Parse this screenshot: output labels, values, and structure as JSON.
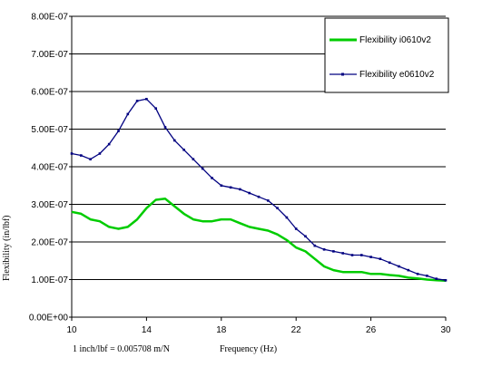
{
  "chart_data": {
    "type": "line",
    "title": "",
    "xlabel": "Frequency (Hz)",
    "ylabel": "Flexibility (in/lbf)",
    "note": "1 inch/lbf = 0.005708 m/N",
    "xlim": [
      10,
      30
    ],
    "ylim": [
      0,
      8e-07
    ],
    "x_ticks": [
      10,
      14,
      18,
      22,
      26,
      30
    ],
    "x_tick_labels": [
      "10",
      "14",
      "18",
      "22",
      "26",
      "30"
    ],
    "y_ticks": [
      0,
      1e-07,
      2e-07,
      3e-07,
      4e-07,
      5e-07,
      6e-07,
      7e-07,
      8e-07
    ],
    "y_tick_labels": [
      "0.00E+00",
      "1.00E-07",
      "2.00E-07",
      "3.00E-07",
      "4.00E-07",
      "5.00E-07",
      "6.00E-07",
      "7.00E-07",
      "8.00E-07"
    ],
    "grid": "horizontal",
    "legend_position": "top-right",
    "series": [
      {
        "name": "Flexibility i0610v2",
        "color": "#00cc00",
        "style": "line",
        "x": [
          10,
          10.5,
          11,
          11.5,
          12,
          12.5,
          13,
          13.5,
          14,
          14.5,
          15,
          15.5,
          16,
          16.5,
          17,
          17.5,
          18,
          18.5,
          19,
          19.5,
          20,
          20.5,
          21,
          21.5,
          22,
          22.5,
          23,
          23.5,
          24,
          24.5,
          25,
          25.5,
          26,
          26.5,
          27,
          27.5,
          28,
          28.5,
          29,
          29.5,
          30
        ],
        "y": [
          2.8e-07,
          2.75e-07,
          2.6e-07,
          2.55e-07,
          2.4e-07,
          2.35e-07,
          2.4e-07,
          2.6e-07,
          2.9e-07,
          3.12e-07,
          3.15e-07,
          2.95e-07,
          2.75e-07,
          2.6e-07,
          2.55e-07,
          2.55e-07,
          2.6e-07,
          2.6e-07,
          2.5e-07,
          2.4e-07,
          2.35e-07,
          2.3e-07,
          2.2e-07,
          2.05e-07,
          1.85e-07,
          1.75e-07,
          1.55e-07,
          1.35e-07,
          1.25e-07,
          1.2e-07,
          1.2e-07,
          1.2e-07,
          1.15e-07,
          1.15e-07,
          1.12e-07,
          1.1e-07,
          1.05e-07,
          1.03e-07,
          1e-07,
          9.8e-08,
          9.7e-08
        ]
      },
      {
        "name": "Flexibility e0610v2",
        "color": "#000080",
        "style": "line-marker",
        "x": [
          10,
          10.5,
          11,
          11.5,
          12,
          12.5,
          13,
          13.5,
          14,
          14.5,
          15,
          15.5,
          16,
          16.5,
          17,
          17.5,
          18,
          18.5,
          19,
          19.5,
          20,
          20.5,
          21,
          21.5,
          22,
          22.5,
          23,
          23.5,
          24,
          24.5,
          25,
          25.5,
          26,
          26.5,
          27,
          27.5,
          28,
          28.5,
          29,
          29.5,
          30
        ],
        "y": [
          4.35e-07,
          4.3e-07,
          4.2e-07,
          4.35e-07,
          4.6e-07,
          4.95e-07,
          5.4e-07,
          5.75e-07,
          5.8e-07,
          5.55e-07,
          5.05e-07,
          4.7e-07,
          4.45e-07,
          4.2e-07,
          3.95e-07,
          3.7e-07,
          3.5e-07,
          3.45e-07,
          3.4e-07,
          3.3e-07,
          3.2e-07,
          3.1e-07,
          2.9e-07,
          2.65e-07,
          2.35e-07,
          2.15e-07,
          1.9e-07,
          1.8e-07,
          1.75e-07,
          1.7e-07,
          1.65e-07,
          1.65e-07,
          1.6e-07,
          1.55e-07,
          1.45e-07,
          1.35e-07,
          1.25e-07,
          1.15e-07,
          1.1e-07,
          1.02e-07,
          9.8e-08
        ]
      }
    ]
  }
}
